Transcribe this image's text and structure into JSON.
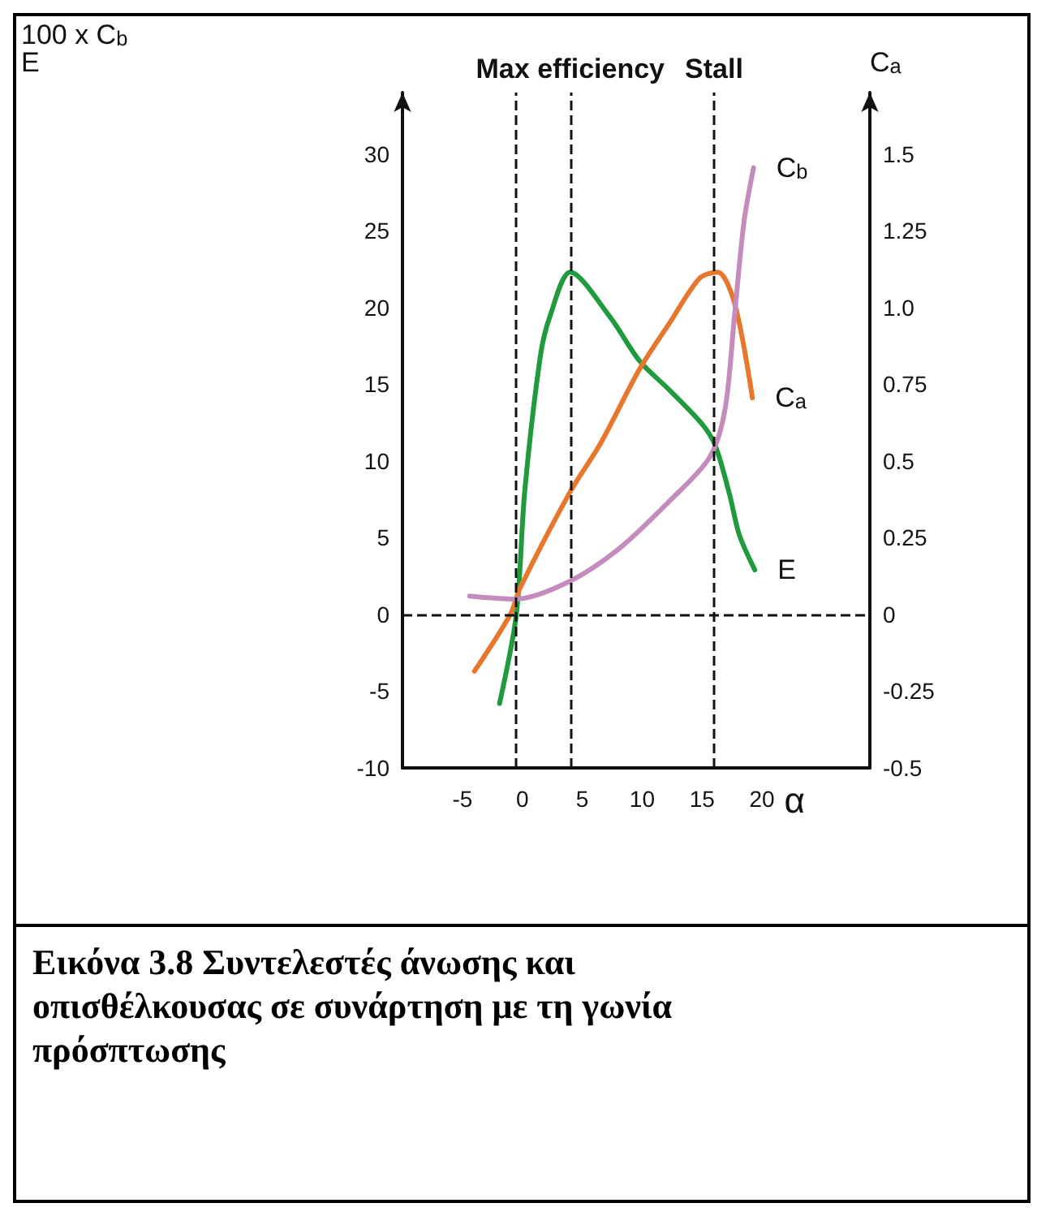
{
  "chart_data": {
    "type": "line",
    "xlabel": "α",
    "ylabel": "100 x C$_{b}$\nE",
    "y2label": "C$_{a}$",
    "xlim": [
      -10,
      29
    ],
    "xticks": [
      -5,
      0,
      5,
      10,
      15,
      20
    ],
    "ylim": [
      -10,
      34
    ],
    "yticks": [
      -10,
      -5,
      0,
      5,
      10,
      15,
      20,
      25,
      30
    ],
    "y2lim": [
      -0.5,
      1.7
    ],
    "y2ticks": [
      -0.5,
      -0.25,
      0,
      0.25,
      0.5,
      0.75,
      {
        "value": 1,
        "label": "1.0"
      },
      1.25,
      1.5
    ],
    "series": [
      {
        "name": "E",
        "color": "#1f9a3c",
        "x": [
          -1.9,
          -0.5,
          0.2,
          1.5,
          2.3,
          4,
          7.3,
          9.8,
          12.3,
          15,
          16.1,
          17.3,
          18.1,
          19.4
        ],
        "values": [
          -5.8,
          0,
          8,
          16.8,
          19.4,
          22.3,
          19.4,
          16.5,
          14.6,
          12.4,
          11,
          7.8,
          5.2,
          2.9
        ]
      },
      {
        "name": "C$_{a}$",
        "color": "#e8772e",
        "axis": "y2",
        "x": [
          -4,
          -1,
          -0.2,
          4,
          6.5,
          9.8,
          12.3,
          14.8,
          16.3,
          17.7,
          19.2
        ],
        "values": [
          -0.185,
          0,
          0.085,
          0.4,
          0.555,
          0.8,
          0.95,
          1.095,
          1.115,
          1.015,
          0.705
        ]
      },
      {
        "name": "C$_{b}$",
        "color": "#c48cbc",
        "x": [
          -4.4,
          -0.6,
          3.8,
          8.1,
          12.3,
          15.6,
          16.9,
          17.7,
          18.5,
          19.3
        ],
        "values": [
          1.2,
          1,
          2.1,
          4.3,
          7.4,
          10.2,
          13.3,
          19.4,
          25.6,
          29.1
        ]
      }
    ],
    "ref_lines": [
      {
        "axis": "x",
        "value": -0.5,
        "line_style": "dashed"
      },
      {
        "axis": "x",
        "value": 4,
        "label": "Max efficiency",
        "line_style": "dashed"
      },
      {
        "axis": "x",
        "value": 16,
        "label": "Stall",
        "line_style": "dashed"
      },
      {
        "axis": "y",
        "value": 0,
        "line_style": "dashed"
      }
    ],
    "grid": false,
    "legend": false,
    "marker": "none",
    "line_style": "solid",
    "annotations": [
      "Εικόνα 3.8 Συντελεστές άνωσης και οπισθέλκουσας σε συνάρτηση με τη γωνία πρόσπτωσης"
    ]
  }
}
